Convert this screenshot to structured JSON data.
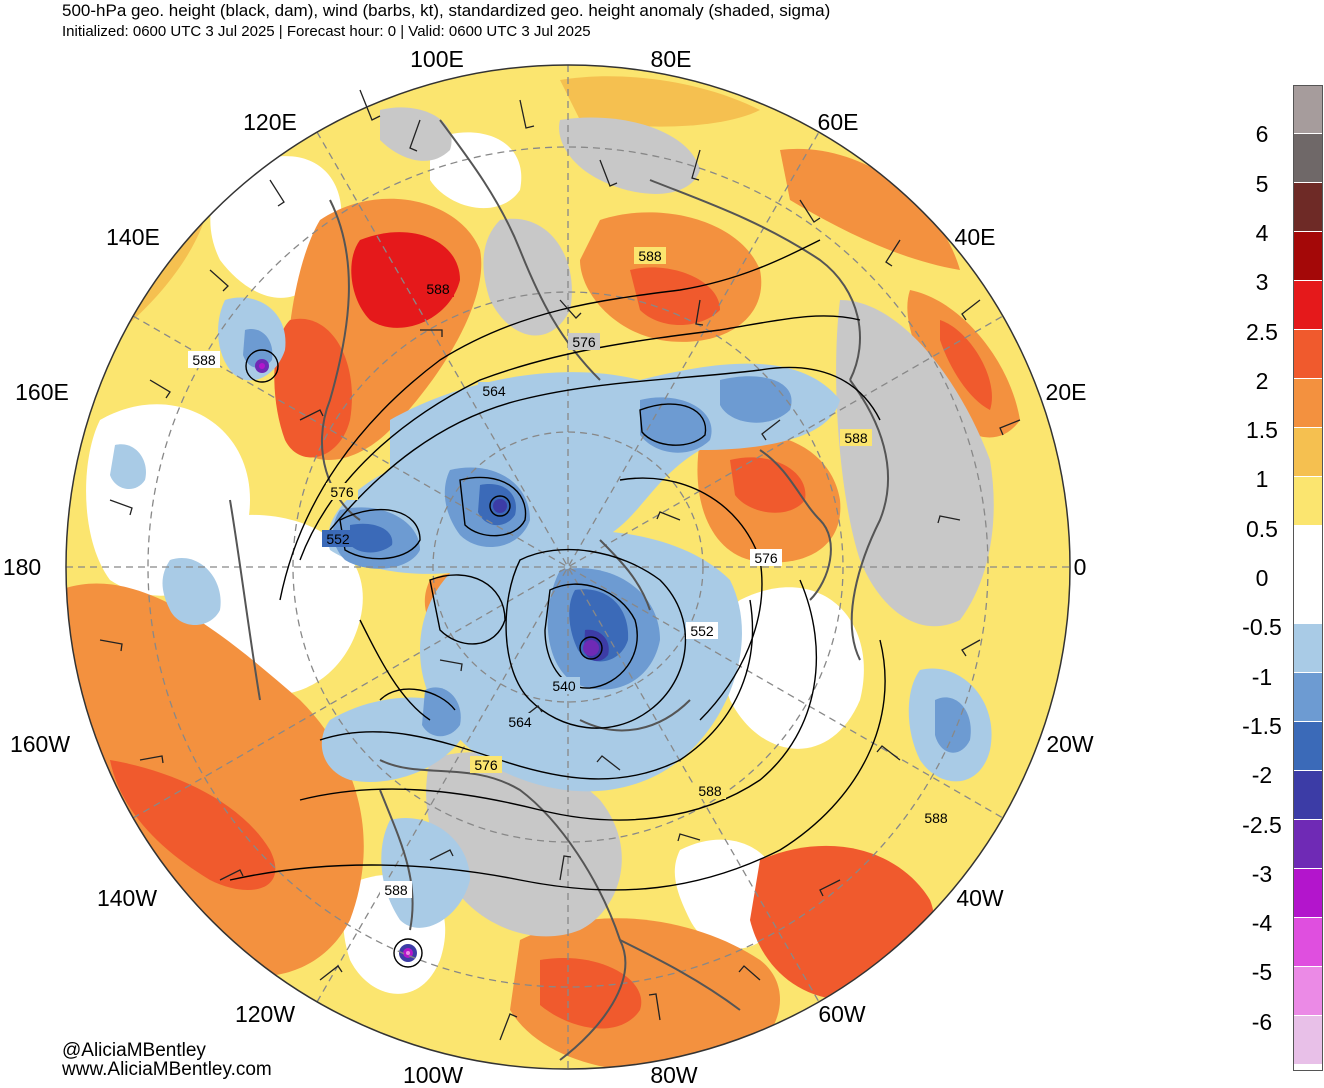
{
  "header": {
    "title": "500-hPa geo. height (black, dam), wind (barbs, kt), standardized geo. height anomaly (shaded, sigma)",
    "subtitle": "Initialized: 0600 UTC 3 Jul 2025 | Forecast hour: 0 | Valid: 0600 UTC 3 Jul 2025"
  },
  "map": {
    "projection": "north-polar-stereographic",
    "longitude_labels": [
      {
        "id": "100E",
        "text": "100E"
      },
      {
        "id": "80E",
        "text": "80E"
      },
      {
        "id": "120E",
        "text": "120E"
      },
      {
        "id": "60E",
        "text": "60E"
      },
      {
        "id": "140E",
        "text": "140E"
      },
      {
        "id": "40E",
        "text": "40E"
      },
      {
        "id": "160E",
        "text": "160E"
      },
      {
        "id": "20E",
        "text": "20E"
      },
      {
        "id": "180",
        "text": "180"
      },
      {
        "id": "0",
        "text": "0"
      },
      {
        "id": "160W",
        "text": "160W"
      },
      {
        "id": "20W",
        "text": "20W"
      },
      {
        "id": "140W",
        "text": "140W"
      },
      {
        "id": "40W",
        "text": "40W"
      },
      {
        "id": "120W",
        "text": "120W"
      },
      {
        "id": "60W",
        "text": "60W"
      },
      {
        "id": "100W",
        "text": "100W"
      },
      {
        "id": "80W",
        "text": "80W"
      }
    ],
    "contour_labels": [
      "588",
      "588",
      "588",
      "576",
      "564",
      "576",
      "552",
      "588",
      "576",
      "552",
      "540",
      "564",
      "576",
      "588",
      "588",
      "588"
    ]
  },
  "colorbar": {
    "ticks": [
      "6",
      "5",
      "4",
      "3",
      "2.5",
      "2",
      "1.5",
      "1",
      "0.5",
      "0",
      "-0.5",
      "-1",
      "-1.5",
      "-2",
      "-2.5",
      "-3",
      "-4",
      "-5",
      "-6"
    ],
    "colors": [
      "#a69c9c",
      "#6f6868",
      "#6e2a26",
      "#a40808",
      "#e5191b",
      "#f05a2d",
      "#f3913f",
      "#f5c050",
      "#fbe56f",
      "#ffffff",
      "#ffffff",
      "#a9cbe6",
      "#6d9bd2",
      "#3b6ab8",
      "#3c3ca6",
      "#6f2ab5",
      "#b315cc",
      "#df4fdf",
      "#eb8ae6",
      "#e8c0e8"
    ]
  },
  "credits": {
    "handle": "@AliciaMBentley",
    "site": "www.AliciaMBentley.com"
  }
}
